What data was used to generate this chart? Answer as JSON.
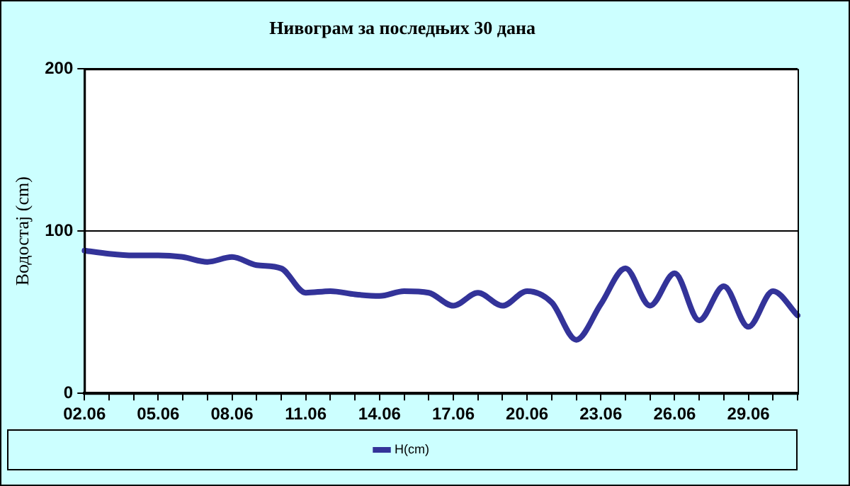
{
  "chart_data": {
    "type": "line",
    "title": "Нивограм за последњих 30 дана",
    "ylabel": "Водостај (cm)",
    "categories": [
      "02.06",
      null,
      null,
      "05.06",
      null,
      null,
      "08.06",
      null,
      null,
      "11.06",
      null,
      null,
      "14.06",
      null,
      null,
      "17.06",
      null,
      null,
      "20.06",
      null,
      null,
      "23.06",
      null,
      null,
      "26.06",
      null,
      null,
      "29.06",
      null,
      null
    ],
    "series": [
      {
        "name": "H(cm)",
        "color": "#333399",
        "values": [
          88,
          86,
          85,
          85,
          84,
          81,
          84,
          79,
          77,
          62,
          63,
          61,
          60,
          63,
          62,
          54,
          62,
          54,
          63,
          56,
          33,
          55,
          77,
          54,
          74,
          45,
          66,
          41,
          63,
          48
        ]
      }
    ],
    "ylim": [
      0,
      200
    ],
    "yticks": [
      0,
      100,
      200
    ],
    "grid": "y",
    "legend": "bottom",
    "marker": "none",
    "line_style": "solid"
  }
}
